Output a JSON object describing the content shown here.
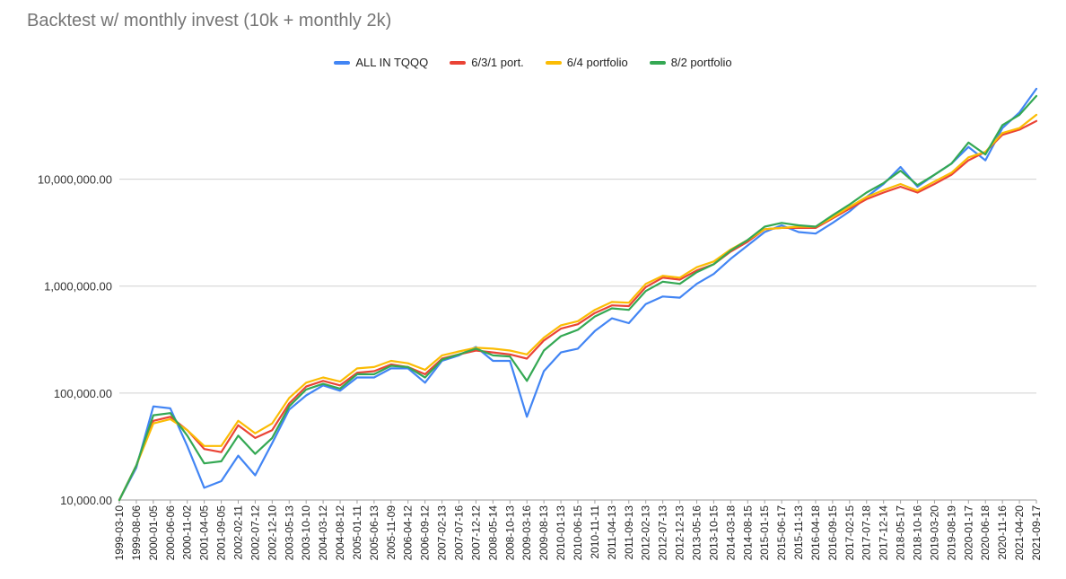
{
  "chart_data": {
    "type": "line",
    "title": "Backtest w/ monthly invest (10k + monthly 2k)",
    "xlabel": "",
    "ylabel": "",
    "yscale": "log",
    "ylim": [
      10000,
      80000000
    ],
    "yticks": [
      {
        "value": 10000,
        "label": "10,000.00"
      },
      {
        "value": 100000,
        "label": "100,000.00"
      },
      {
        "value": 1000000,
        "label": "1,000,000.00"
      },
      {
        "value": 10000000,
        "label": "10,000,000.00"
      }
    ],
    "legend_position": "top",
    "grid": true,
    "categories": [
      "1999-03-10",
      "1999-08-06",
      "2000-01-05",
      "2000-06-06",
      "2000-11-02",
      "2001-04-05",
      "2001-09-05",
      "2002-02-11",
      "2002-07-12",
      "2002-12-10",
      "2003-05-13",
      "2003-10-10",
      "2004-03-12",
      "2004-08-12",
      "2005-01-11",
      "2005-06-13",
      "2005-11-09",
      "2006-04-12",
      "2006-09-12",
      "2007-02-13",
      "2007-07-16",
      "2007-12-12",
      "2008-05-14",
      "2008-10-13",
      "2009-03-16",
      "2009-08-13",
      "2010-01-13",
      "2010-06-15",
      "2010-11-11",
      "2011-04-13",
      "2011-09-13",
      "2012-02-13",
      "2012-07-13",
      "2012-12-13",
      "2013-05-16",
      "2013-10-15",
      "2014-03-18",
      "2014-08-15",
      "2015-01-15",
      "2015-06-17",
      "2015-11-13",
      "2016-04-18",
      "2016-09-15",
      "2017-02-15",
      "2017-07-18",
      "2017-12-14",
      "2018-05-17",
      "2018-10-16",
      "2019-03-20",
      "2019-08-19",
      "2020-01-17",
      "2020-06-18",
      "2020-11-16",
      "2021-04-20",
      "2021-09-17"
    ],
    "series": [
      {
        "name": "ALL IN TQQQ",
        "color": "#4285f4",
        "values": [
          10000,
          20000,
          75000,
          72000,
          32000,
          13000,
          15000,
          26000,
          17000,
          34000,
          70000,
          95000,
          118000,
          105000,
          140000,
          140000,
          170000,
          170000,
          125000,
          200000,
          225000,
          270000,
          200000,
          200000,
          60000,
          160000,
          240000,
          260000,
          380000,
          500000,
          450000,
          680000,
          800000,
          780000,
          1050000,
          1300000,
          1800000,
          2400000,
          3200000,
          3700000,
          3200000,
          3100000,
          3900000,
          5000000,
          6800000,
          9000000,
          13000000,
          8500000,
          11000000,
          14000000,
          20000000,
          15000000,
          30000000,
          42000000,
          70000000
        ]
      },
      {
        "name": "6/3/1 port.",
        "color": "#ea4335",
        "values": [
          10000,
          21000,
          55000,
          60000,
          45000,
          30000,
          28000,
          50000,
          38000,
          45000,
          80000,
          115000,
          130000,
          118000,
          155000,
          160000,
          185000,
          175000,
          150000,
          210000,
          230000,
          250000,
          240000,
          230000,
          210000,
          310000,
          400000,
          440000,
          560000,
          660000,
          650000,
          980000,
          1200000,
          1150000,
          1400000,
          1600000,
          2100000,
          2600000,
          3400000,
          3500000,
          3500000,
          3500000,
          4300000,
          5300000,
          6500000,
          7500000,
          8500000,
          7500000,
          9000000,
          11000000,
          15000000,
          18000000,
          26000000,
          29000000,
          35000000
        ]
      },
      {
        "name": "6/4 portfolio",
        "color": "#fbbc04",
        "values": [
          10000,
          21000,
          52000,
          57000,
          45000,
          32000,
          32000,
          55000,
          42000,
          52000,
          90000,
          125000,
          140000,
          128000,
          170000,
          175000,
          200000,
          190000,
          165000,
          225000,
          245000,
          265000,
          260000,
          250000,
          230000,
          330000,
          430000,
          470000,
          600000,
          710000,
          700000,
          1050000,
          1250000,
          1200000,
          1500000,
          1700000,
          2200000,
          2700000,
          3400000,
          3500000,
          3600000,
          3600000,
          4400000,
          5500000,
          6800000,
          7900000,
          9000000,
          7800000,
          9500000,
          11500000,
          16000000,
          18000000,
          27000000,
          30000000,
          40000000
        ]
      },
      {
        "name": "8/2 portfolio",
        "color": "#34a853",
        "values": [
          10000,
          21000,
          62000,
          65000,
          40000,
          22000,
          23000,
          40000,
          27000,
          38000,
          75000,
          108000,
          122000,
          110000,
          150000,
          150000,
          180000,
          175000,
          140000,
          205000,
          230000,
          260000,
          225000,
          220000,
          130000,
          250000,
          340000,
          390000,
          520000,
          620000,
          600000,
          900000,
          1100000,
          1050000,
          1350000,
          1600000,
          2150000,
          2700000,
          3600000,
          3900000,
          3700000,
          3600000,
          4600000,
          5800000,
          7500000,
          9200000,
          12000000,
          8800000,
          11000000,
          14000000,
          22000000,
          17000000,
          32000000,
          40000000,
          60000000
        ]
      }
    ]
  }
}
